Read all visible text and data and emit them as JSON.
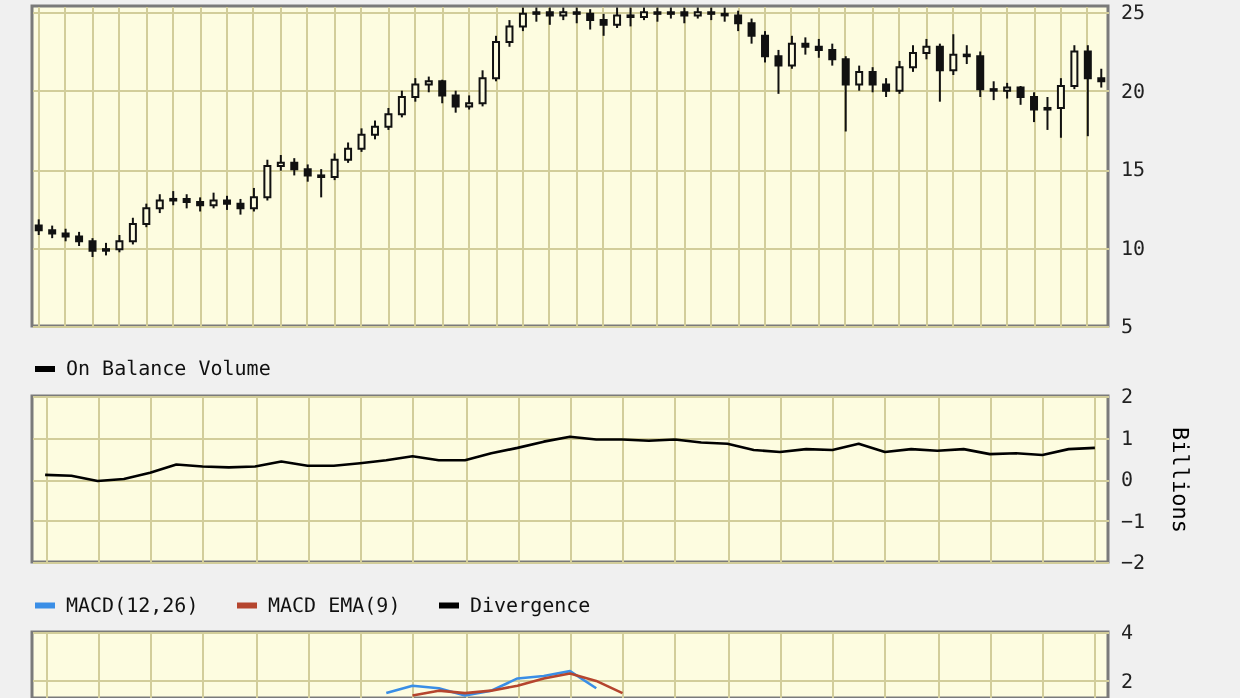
{
  "chart_data": [
    {
      "type": "candlestick",
      "categories": [
        null,
        null,
        null,
        null,
        null,
        null,
        null,
        null,
        null,
        null,
        null,
        null,
        null,
        null,
        null,
        null,
        null,
        null,
        null,
        null,
        null,
        null,
        null,
        null,
        null,
        null,
        null,
        null,
        null,
        null,
        null,
        null,
        null,
        null,
        null,
        null,
        null,
        null,
        null,
        null,
        null,
        null,
        null,
        null,
        null,
        null,
        null,
        null,
        null,
        null,
        null,
        null,
        null,
        null,
        null,
        null,
        null,
        null,
        null,
        null,
        null,
        null,
        null,
        null,
        null,
        null,
        null,
        null,
        null,
        null,
        null,
        null,
        null,
        null,
        null,
        null,
        null,
        null,
        null,
        null
      ],
      "ohlc": [
        [
          11.4,
          11.8,
          10.8,
          11.1
        ],
        [
          11.1,
          11.4,
          10.6,
          10.9
        ],
        [
          10.9,
          11.2,
          10.4,
          10.7
        ],
        [
          10.7,
          11.0,
          10.1,
          10.4
        ],
        [
          10.4,
          10.6,
          9.4,
          9.8
        ],
        [
          9.8,
          10.3,
          9.5,
          9.9
        ],
        [
          9.9,
          10.8,
          9.7,
          10.4
        ],
        [
          10.4,
          11.9,
          10.2,
          11.5
        ],
        [
          11.5,
          12.8,
          11.3,
          12.5
        ],
        [
          12.5,
          13.4,
          12.2,
          13.0
        ],
        [
          13.0,
          13.6,
          12.7,
          13.1
        ],
        [
          13.1,
          13.4,
          12.5,
          12.9
        ],
        [
          12.9,
          13.2,
          12.3,
          12.7
        ],
        [
          12.7,
          13.5,
          12.5,
          13.0
        ],
        [
          13.0,
          13.3,
          12.4,
          12.8
        ],
        [
          12.8,
          13.1,
          12.1,
          12.5
        ],
        [
          12.5,
          13.8,
          12.3,
          13.2
        ],
        [
          13.2,
          15.6,
          13.0,
          15.2
        ],
        [
          15.2,
          15.9,
          14.9,
          15.4
        ],
        [
          15.4,
          15.7,
          14.6,
          15.0
        ],
        [
          15.0,
          15.3,
          14.2,
          14.6
        ],
        [
          14.6,
          15.0,
          13.2,
          14.5
        ],
        [
          14.5,
          16.0,
          14.3,
          15.6
        ],
        [
          15.6,
          16.7,
          15.4,
          16.3
        ],
        [
          16.3,
          17.6,
          16.1,
          17.2
        ],
        [
          17.2,
          18.1,
          16.9,
          17.7
        ],
        [
          17.7,
          18.9,
          17.5,
          18.5
        ],
        [
          18.5,
          20.0,
          18.3,
          19.6
        ],
        [
          19.6,
          20.8,
          19.3,
          20.4
        ],
        [
          20.4,
          20.9,
          19.9,
          20.6
        ],
        [
          20.6,
          20.7,
          19.2,
          19.7
        ],
        [
          19.7,
          20.0,
          18.6,
          19.0
        ],
        [
          19.0,
          19.7,
          18.8,
          19.2
        ],
        [
          19.2,
          21.3,
          19.0,
          20.8
        ],
        [
          20.8,
          23.5,
          20.6,
          23.1
        ],
        [
          23.1,
          24.5,
          22.8,
          24.1
        ],
        [
          24.1,
          25.3,
          23.8,
          24.9
        ],
        [
          24.9,
          25.3,
          24.4,
          25.0
        ],
        [
          25.0,
          25.3,
          24.2,
          24.8
        ],
        [
          24.8,
          25.3,
          24.5,
          25.0
        ],
        [
          25.0,
          25.3,
          24.3,
          24.9
        ],
        [
          24.9,
          25.2,
          23.9,
          24.5
        ],
        [
          24.5,
          24.9,
          23.5,
          24.2
        ],
        [
          24.2,
          25.3,
          24.0,
          24.8
        ],
        [
          24.8,
          25.3,
          24.1,
          24.7
        ],
        [
          24.7,
          25.3,
          24.5,
          25.0
        ],
        [
          25.0,
          25.3,
          24.4,
          24.9
        ],
        [
          24.9,
          25.3,
          24.6,
          25.0
        ],
        [
          25.0,
          25.3,
          24.3,
          24.8
        ],
        [
          24.8,
          25.3,
          24.6,
          25.0
        ],
        [
          25.0,
          25.3,
          24.5,
          24.9
        ],
        [
          24.9,
          25.3,
          24.4,
          24.8
        ],
        [
          24.8,
          25.1,
          23.8,
          24.3
        ],
        [
          24.3,
          24.6,
          23.0,
          23.5
        ],
        [
          23.5,
          23.8,
          21.8,
          22.2
        ],
        [
          22.2,
          22.6,
          19.8,
          21.6
        ],
        [
          21.6,
          23.5,
          21.4,
          23.0
        ],
        [
          23.0,
          23.4,
          22.3,
          22.8
        ],
        [
          22.8,
          23.3,
          22.1,
          22.6
        ],
        [
          22.6,
          23.0,
          21.6,
          22.0
        ],
        [
          22.0,
          22.2,
          17.4,
          20.4
        ],
        [
          20.4,
          21.6,
          20.0,
          21.2
        ],
        [
          21.2,
          21.5,
          19.9,
          20.4
        ],
        [
          20.4,
          20.8,
          19.6,
          20.0
        ],
        [
          20.0,
          21.9,
          19.8,
          21.5
        ],
        [
          21.5,
          22.9,
          21.2,
          22.4
        ],
        [
          22.4,
          23.3,
          22.0,
          22.8
        ],
        [
          22.8,
          23.0,
          19.3,
          21.3
        ],
        [
          21.3,
          23.6,
          21.0,
          22.3
        ],
        [
          22.3,
          22.9,
          21.7,
          22.2
        ],
        [
          22.2,
          22.5,
          19.6,
          20.1
        ],
        [
          20.1,
          20.6,
          19.4,
          20.0
        ],
        [
          20.0,
          20.5,
          19.5,
          20.2
        ],
        [
          20.2,
          20.3,
          19.1,
          19.6
        ],
        [
          19.6,
          19.9,
          18.0,
          18.8
        ],
        [
          18.8,
          19.6,
          17.5,
          18.9
        ],
        [
          18.9,
          20.8,
          17.0,
          20.3
        ],
        [
          20.3,
          22.9,
          20.1,
          22.5
        ],
        [
          22.5,
          22.9,
          17.1,
          20.8
        ],
        [
          20.8,
          21.4,
          20.2,
          20.6
        ]
      ],
      "ylim": [
        5,
        25.4
      ],
      "yticks": [
        5,
        10,
        15,
        20,
        25
      ],
      "grid": true,
      "tick_labels": "y"
    },
    {
      "type": "line",
      "categories": [
        null,
        null,
        null,
        null,
        null,
        null,
        null,
        null,
        null,
        null,
        null,
        null,
        null,
        null,
        null,
        null,
        null,
        null,
        null,
        null,
        null,
        null,
        null,
        null,
        null,
        null,
        null,
        null,
        null,
        null,
        null,
        null,
        null,
        null,
        null,
        null,
        null,
        null,
        null,
        null,
        null
      ],
      "series": [
        {
          "name": "On Balance Volume",
          "color": "#000000",
          "values": [
            0.1,
            0.08,
            -0.05,
            0.0,
            0.15,
            0.35,
            0.3,
            0.28,
            0.3,
            0.42,
            0.32,
            0.32,
            0.38,
            0.45,
            0.55,
            0.45,
            0.45,
            0.62,
            0.75,
            0.9,
            1.02,
            0.95,
            0.95,
            0.92,
            0.95,
            0.88,
            0.85,
            0.7,
            0.65,
            0.72,
            0.7,
            0.85,
            0.65,
            0.72,
            0.68,
            0.72,
            0.6,
            0.62,
            0.58,
            0.72,
            0.75
          ]
        }
      ],
      "ylabel": "Billions",
      "ylim": [
        -2,
        2
      ],
      "yticks": [
        -2,
        -1,
        0,
        1,
        2
      ],
      "grid": true,
      "legend": "top left",
      "tick_labels": "y"
    },
    {
      "type": "line",
      "categories": [
        null,
        null,
        null,
        null,
        null,
        null,
        null,
        null,
        null,
        null,
        null,
        null,
        null,
        null,
        null,
        null,
        null,
        null,
        null,
        null,
        null,
        null,
        null,
        null,
        null,
        null,
        null,
        null,
        null,
        null,
        null,
        null,
        null,
        null,
        null,
        null,
        null,
        null,
        null,
        null,
        null
      ],
      "series": [
        {
          "name": "MACD(12,26)",
          "color": "#3a8ee6",
          "values": [
            null,
            null,
            null,
            null,
            null,
            null,
            null,
            null,
            null,
            null,
            null,
            null,
            null,
            1.5,
            1.8,
            1.7,
            1.4,
            1.6,
            2.1,
            2.2,
            2.4,
            1.7,
            null,
            null,
            null,
            null,
            null,
            null,
            null,
            null,
            null,
            null,
            null,
            null,
            null,
            null,
            null,
            null,
            null,
            null,
            null
          ]
        },
        {
          "name": "MACD EMA(9)",
          "color": "#b5452e",
          "values": [
            null,
            null,
            null,
            null,
            null,
            null,
            null,
            null,
            null,
            null,
            null,
            null,
            null,
            null,
            1.4,
            1.6,
            1.5,
            1.6,
            1.8,
            2.1,
            2.3,
            2.0,
            1.5,
            null,
            null,
            null,
            null,
            null,
            null,
            null,
            null,
            null,
            null,
            null,
            null,
            null,
            null,
            null,
            null,
            null,
            null
          ]
        },
        {
          "name": "Divergence",
          "color": "#000000",
          "values": [
            null,
            null,
            null,
            null,
            null,
            null,
            null,
            null,
            null,
            null,
            null,
            null,
            null,
            null,
            null,
            null,
            null,
            null,
            null,
            null,
            null,
            null,
            null,
            null,
            null,
            null,
            null,
            null,
            null,
            null,
            null,
            null,
            null,
            null,
            null,
            null,
            null,
            null,
            null,
            null,
            null
          ]
        }
      ],
      "ylim": [
        1.3,
        4
      ],
      "yticks": [
        2,
        4
      ],
      "grid": true,
      "legend": "top left",
      "tick_labels": "y"
    }
  ]
}
